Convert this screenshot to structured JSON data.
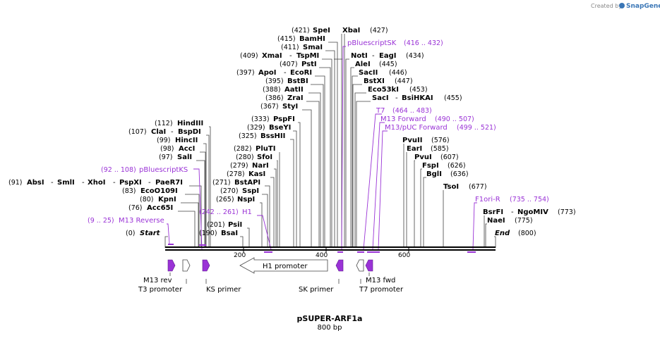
{
  "watermark": {
    "created_by": "Created by",
    "brand": "SnapGene"
  },
  "plasmid": {
    "name": "pSUPER-ARF1a",
    "size": "800 bp"
  },
  "ruler_ticks": [
    "200",
    "400",
    "600"
  ],
  "sites": [
    {
      "pos": "(421)",
      "label": "SpeI"
    },
    {
      "pos": "(427)",
      "label": "XbaI"
    },
    {
      "pos": "(415)",
      "label": "BamHI"
    },
    {
      "pos": "(411)",
      "label": "SmaI"
    },
    {
      "pos": "(409)",
      "label": "XmaI",
      "extra": "TspMI"
    },
    {
      "pos": "(407)",
      "label": "PstI"
    },
    {
      "pos": "(397)",
      "label": "ApoI",
      "extra": "EcoRI"
    },
    {
      "pos": "(395)",
      "label": "BstBI"
    },
    {
      "pos": "(388)",
      "label": "AatII"
    },
    {
      "pos": "(386)",
      "label": "ZraI"
    },
    {
      "pos": "(367)",
      "label": "StyI"
    },
    {
      "pos": "(333)",
      "label": "PspFI"
    },
    {
      "pos": "(329)",
      "label": "BseYI"
    },
    {
      "pos": "(325)",
      "label": "BssHII"
    },
    {
      "pos": "(282)",
      "label": "PluTI"
    },
    {
      "pos": "(280)",
      "label": "SfoI"
    },
    {
      "pos": "(279)",
      "label": "NarI"
    },
    {
      "pos": "(278)",
      "label": "KasI"
    },
    {
      "pos": "(271)",
      "label": "BstAPI"
    },
    {
      "pos": "(270)",
      "label": "SspI"
    },
    {
      "pos": "(265)",
      "label": "NspI"
    },
    {
      "pos": "(201)",
      "label": "PsiI"
    },
    {
      "pos": "(190)",
      "label": "BsaI"
    },
    {
      "pos": "(112)",
      "label": "HindIII"
    },
    {
      "pos": "(107)",
      "label": "ClaI",
      "extra": "BspDI"
    },
    {
      "pos": "(99)",
      "label": "HincII"
    },
    {
      "pos": "(98)",
      "label": "AccI"
    },
    {
      "pos": "(97)",
      "label": "SalI"
    },
    {
      "pos": "(91)",
      "label": "AbsI",
      "extra": "SmlI",
      "extra2": "XhoI",
      "extra3": "PspXI",
      "extra4": "PaeR7I"
    },
    {
      "pos": "(83)",
      "label": "EcoO109I"
    },
    {
      "pos": "(80)",
      "label": "KpnI"
    },
    {
      "pos": "(76)",
      "label": "Acc65I"
    },
    {
      "pos": "(0)",
      "label": "Start"
    },
    {
      "label": "NotI",
      "extra": "EagI",
      "pos": "(434)"
    },
    {
      "label": "AleI",
      "pos": "(445)"
    },
    {
      "label": "SacII",
      "pos": "(446)"
    },
    {
      "label": "BstXI",
      "pos": "(447)"
    },
    {
      "label": "Eco53kI",
      "pos": "(453)"
    },
    {
      "label": "SacI",
      "extra": "BsiHKAI",
      "pos": "(455)"
    },
    {
      "label": "PvuII",
      "pos": "(576)"
    },
    {
      "label": "EarI",
      "pos": "(585)"
    },
    {
      "label": "PvuI",
      "pos": "(607)"
    },
    {
      "label": "FspI",
      "pos": "(626)"
    },
    {
      "label": "BglI",
      "pos": "(636)"
    },
    {
      "label": "TsoI",
      "pos": "(677)"
    },
    {
      "label": "BsrFI",
      "extra": "NgoMIV",
      "pos": "(773)"
    },
    {
      "label": "NaeI",
      "pos": "(775)"
    },
    {
      "label": "End",
      "pos": "(800)"
    }
  ],
  "primers": [
    {
      "label": "pBluescriptSK",
      "range": "(416 .. 432)"
    },
    {
      "label": "T7",
      "range": "(464 .. 483)"
    },
    {
      "label": "M13 Forward",
      "range": "(490 .. 507)"
    },
    {
      "label": "M13/pUC Forward",
      "range": "(499 .. 521)"
    },
    {
      "label": "pBluescriptKS",
      "range": "(92 .. 108)"
    },
    {
      "label": "H1",
      "range": "(242 .. 261)"
    },
    {
      "label": "M13 Reverse",
      "range": "(9 .. 25)"
    },
    {
      "label": "F1ori-R",
      "range": "(735 .. 754)"
    }
  ],
  "features": {
    "m13_rev": "M13 rev",
    "t3_promoter": "T3 promoter",
    "ks_primer": "KS primer",
    "h1_promoter": "H1 promoter",
    "sk_primer": "SK primer",
    "m13_fwd": "M13 fwd",
    "t7_promoter": "T7 promoter"
  },
  "colors": {
    "primer": "#9a33d6",
    "line": "#333333",
    "backbone": "#000000"
  }
}
